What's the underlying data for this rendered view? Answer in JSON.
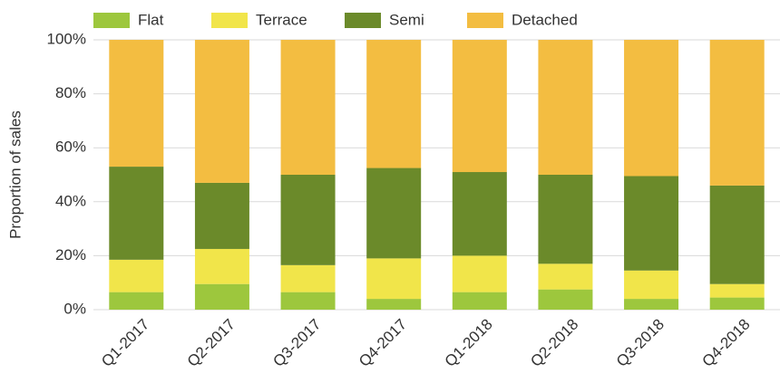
{
  "chart_data": {
    "type": "stacked-bar",
    "y_label": "Proportion of sales",
    "categories": [
      "Q1-2017",
      "Q2-2017",
      "Q3-2017",
      "Q4-2017",
      "Q1-2018",
      "Q2-2018",
      "Q3-2018",
      "Q4-2018"
    ],
    "series": [
      {
        "name": "Flat",
        "color": "#9dc73d",
        "values": [
          6.5,
          9.5,
          6.5,
          4,
          6.5,
          7.5,
          4,
          4.5
        ]
      },
      {
        "name": "Terrace",
        "color": "#f1e54a",
        "values": [
          12,
          13,
          10,
          15,
          13.5,
          9.5,
          10.5,
          5
        ]
      },
      {
        "name": "Semi",
        "color": "#6b8a2a",
        "values": [
          34.5,
          24.5,
          33.5,
          33.5,
          31,
          33,
          35,
          36.5
        ]
      },
      {
        "name": "Detached",
        "color": "#f3bd41",
        "values": [
          47,
          53,
          50,
          47.5,
          49,
          50,
          50.5,
          54
        ]
      }
    ],
    "ylim": [
      0,
      100
    ],
    "yticks": [
      {
        "value": 0,
        "label": "0%"
      },
      {
        "value": 20,
        "label": "20%"
      },
      {
        "value": 40,
        "label": "40%"
      },
      {
        "value": 60,
        "label": "60%"
      },
      {
        "value": 80,
        "label": "80%"
      },
      {
        "value": 100,
        "label": "100%"
      }
    ],
    "grid": true
  }
}
